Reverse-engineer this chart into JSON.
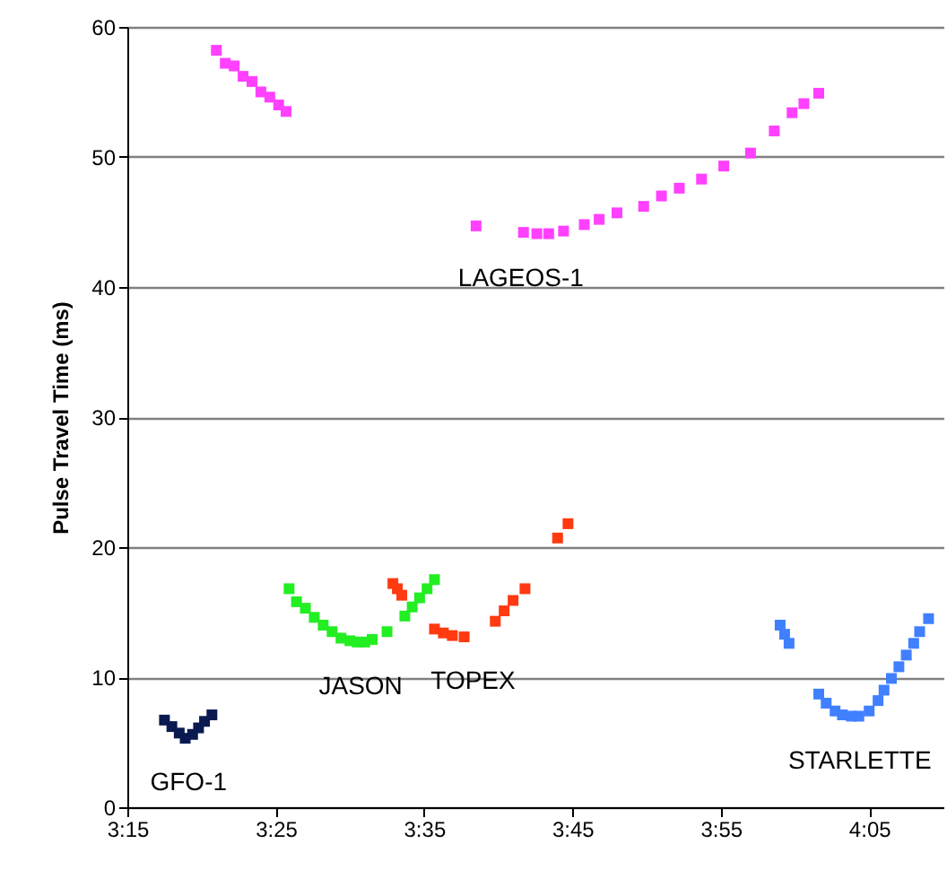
{
  "chart_data": {
    "type": "scatter",
    "ylabel": "Pulse Travel Time (ms)",
    "xlim": [
      3.25,
      4.1667
    ],
    "xticks": [
      {
        "value": 3.25,
        "label": "3:15"
      },
      {
        "value": 3.4167,
        "label": "3:25"
      },
      {
        "value": 3.5833,
        "label": "3:35"
      },
      {
        "value": 3.75,
        "label": "3:45"
      },
      {
        "value": 3.9167,
        "label": "3:55"
      },
      {
        "value": 4.0833,
        "label": "4:05"
      }
    ],
    "ylim": [
      0,
      60
    ],
    "yticks": [
      0,
      10,
      20,
      30,
      40,
      50,
      60
    ],
    "grid": "y",
    "marker": "square",
    "series": [
      {
        "name": "LAGEOS-1",
        "color": "#ff40ff",
        "x": [
          3.35,
          3.36,
          3.37,
          3.38,
          3.39,
          3.4,
          3.41,
          3.42,
          3.4283,
          3.6417,
          3.695,
          3.71,
          3.7233,
          3.74,
          3.7633,
          3.78,
          3.8,
          3.83,
          3.85,
          3.87,
          3.895,
          3.92,
          3.95,
          3.9767,
          3.9967,
          4.01,
          4.0267
        ],
        "values": [
          58.2,
          57.2,
          57.0,
          56.2,
          55.8,
          55.0,
          54.6,
          54.0,
          53.5,
          44.7,
          44.2,
          44.1,
          44.1,
          44.3,
          44.8,
          45.2,
          45.7,
          46.2,
          47.0,
          47.6,
          48.3,
          49.3,
          50.3,
          52.0,
          53.4,
          54.1,
          54.9
        ]
      },
      {
        "name": "GFO-1",
        "color": "#0a1a50",
        "x": [
          3.2917,
          3.3,
          3.3083,
          3.315,
          3.3233,
          3.33,
          3.3367,
          3.345
        ],
        "values": [
          6.7,
          6.2,
          5.7,
          5.3,
          5.6,
          6.1,
          6.6,
          7.1
        ]
      },
      {
        "name": "JASON",
        "color": "#22ee22",
        "x": [
          3.4317,
          3.44,
          3.45,
          3.46,
          3.47,
          3.48,
          3.49,
          3.5,
          3.5083,
          3.5167,
          3.525,
          3.5417,
          3.5617,
          3.57,
          3.5783,
          3.5867,
          3.595
        ],
        "values": [
          16.8,
          15.8,
          15.3,
          14.6,
          14.0,
          13.5,
          13.0,
          12.8,
          12.7,
          12.7,
          12.9,
          13.5,
          14.7,
          15.4,
          16.1,
          16.8,
          17.5
        ]
      },
      {
        "name": "TOPEX",
        "color": "#ff3a10",
        "x": [
          3.5483,
          3.5533,
          3.5583,
          3.595,
          3.605,
          3.615,
          3.6283,
          3.6633,
          3.6733,
          3.6833,
          3.6967,
          3.7333,
          3.745
        ],
        "values": [
          17.2,
          16.8,
          16.3,
          13.7,
          13.4,
          13.2,
          13.1,
          14.3,
          15.1,
          15.9,
          16.8,
          20.7,
          21.8
        ]
      },
      {
        "name": "STARLETTE",
        "color": "#4080ff",
        "x": [
          3.9833,
          3.9883,
          3.9933,
          4.0267,
          4.035,
          4.045,
          4.0533,
          4.0633,
          4.0717,
          4.0833,
          4.0933,
          4.1,
          4.1083,
          4.1167,
          4.125,
          4.1333,
          4.14,
          4.15
        ],
        "values": [
          14.0,
          13.3,
          12.6,
          8.7,
          8.0,
          7.4,
          7.1,
          7.0,
          7.0,
          7.4,
          8.2,
          9.0,
          9.9,
          10.8,
          11.7,
          12.6,
          13.5,
          14.5
        ]
      }
    ]
  }
}
